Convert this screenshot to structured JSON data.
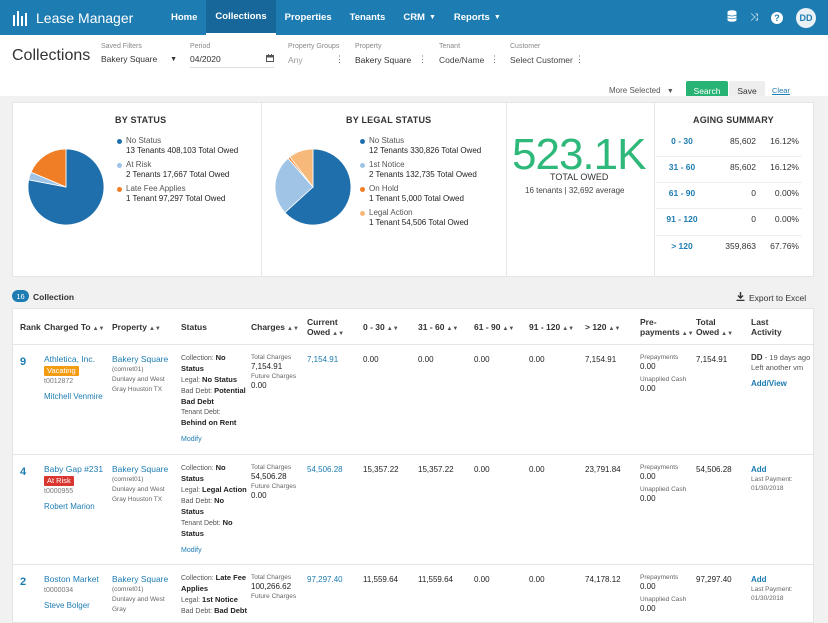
{
  "nav": {
    "app_title": "Lease Manager",
    "items": [
      "Home",
      "Collections",
      "Properties",
      "Tenants",
      "CRM",
      "Reports"
    ],
    "avatar": "DD"
  },
  "filters": {
    "title": "Collections",
    "saved_label": "Saved Filters",
    "saved_value": "Bakery Square",
    "period_label": "Period",
    "period_value": "04/2020",
    "pg_label": "Property Groups",
    "pg_value": "Any",
    "prop_label": "Property",
    "prop_value": "Bakery Square",
    "tenant_label": "Tenant",
    "tenant_placeholder": "Code/Name",
    "cust_label": "Customer",
    "cust_placeholder": "Select Customer",
    "more": "More Selected",
    "search": "Search",
    "save": "Save",
    "clear": "Clear"
  },
  "by_status": {
    "title": "BY STATUS",
    "items": [
      {
        "name": "No Status",
        "val": "13 Tenants 408,103 Total Owed",
        "color": "#1f6fad"
      },
      {
        "name": "At Risk",
        "val": "2 Tenants 17,667 Total Owed",
        "color": "#9fc4e6"
      },
      {
        "name": "Late Fee Applies",
        "val": "1 Tenant 97,297 Total Owed",
        "color": "#f07e26"
      }
    ],
    "values": [
      408103,
      17667,
      97297
    ]
  },
  "by_legal": {
    "title": "BY LEGAL STATUS",
    "items": [
      {
        "name": "No Status",
        "val": "12 Tenants 330,826 Total Owed",
        "color": "#1f6fad"
      },
      {
        "name": "1st Notice",
        "val": "2 Tenants 132,735 Total Owed",
        "color": "#9fc4e6"
      },
      {
        "name": "On Hold",
        "val": "1 Tenant 5,000 Total Owed",
        "color": "#f07e26"
      },
      {
        "name": "Legal Action",
        "val": "1 Tenant 54,506 Total Owed",
        "color": "#f7b97a"
      }
    ],
    "values": [
      330826,
      132735,
      5000,
      54506
    ]
  },
  "total": {
    "big": "523.1K",
    "label": "TOTAL OWED",
    "sub": "16 tenants | 32,692 average"
  },
  "aging": {
    "title": "AGING SUMMARY",
    "rows": [
      {
        "range": "0 - 30",
        "amount": "85,602",
        "pct": "16.12%"
      },
      {
        "range": "31 - 60",
        "amount": "85,602",
        "pct": "16.12%"
      },
      {
        "range": "61 - 90",
        "amount": "0",
        "pct": "0.00%"
      },
      {
        "range": "91 - 120",
        "amount": "0",
        "pct": "0.00%"
      },
      {
        "range": "> 120",
        "amount": "359,863",
        "pct": "67.76%"
      }
    ]
  },
  "table": {
    "count": "16",
    "label": "Collection",
    "export": "Export to Excel",
    "headers": [
      "Rank",
      "Charged To",
      "Property",
      "Status",
      "Charges",
      "Current Owed",
      "0 - 30",
      "31 - 60",
      "61 - 90",
      "91 - 120",
      "> 120",
      "Pre- payments",
      "Total Owed",
      "Last Activity"
    ],
    "rows": [
      {
        "rank": "9",
        "name": "Athletica, Inc.",
        "tag": "Vacating",
        "id": "t0012872",
        "person": "Mitchell Venmire",
        "prop": "Bakery Square",
        "prop_code": "(comret01)",
        "addr": "Dunlavy and West Gray Houston TX",
        "st_coll": "No Status",
        "st_legal": "No Status",
        "st_bad": "Potential Bad Debt",
        "st_tenant": "Behind on Rent",
        "modify": "Modify",
        "tot_charges": "7,154.91",
        "fut_charges": "0.00",
        "current": "7,154.91",
        "a0": "0.00",
        "a31": "0.00",
        "a61": "0.00",
        "a91": "0.00",
        "a120": "7,154.91",
        "prepay": "0.00",
        "unapplied": "0.00",
        "total": "7,154.91",
        "last_user": "DD",
        "last_ago": "- 19 days ago",
        "last_note": "Left another vm",
        "last_link": "Add/View",
        "last_pay": ""
      },
      {
        "rank": "4",
        "name": "Baby Gap #231",
        "tag": "At Risk",
        "id": "t0000955",
        "person": "Robert Marion",
        "prop": "Bakery Square",
        "prop_code": "(comret01)",
        "addr": "Dunlavy and West Gray Houston TX",
        "st_coll": "No Status",
        "st_legal": "Legal Action",
        "st_bad": "No Status",
        "st_tenant": "No Status",
        "modify": "Modify",
        "tot_charges": "54,506.28",
        "fut_charges": "0.00",
        "current": "54,506.28",
        "a0": "15,357.22",
        "a31": "15,357.22",
        "a61": "0.00",
        "a91": "0.00",
        "a120": "23,791.84",
        "prepay": "0.00",
        "unapplied": "0.00",
        "total": "54,506.28",
        "last_user": "",
        "last_ago": "",
        "last_note": "",
        "last_link": "Add",
        "last_pay": "Last Payment: 01/30/2018"
      },
      {
        "rank": "2",
        "name": "Boston Market",
        "tag": "",
        "id": "t0000034",
        "person": "Steve Bolger",
        "prop": "Bakery Square",
        "prop_code": "(comret01)",
        "addr": "Dunlavy and West Gray",
        "st_coll": "Late Fee Applies",
        "st_legal": "1st Notice",
        "st_bad": "Bad Debt",
        "st_tenant": "",
        "modify": "",
        "tot_charges": "100,266.62",
        "fut_charges": "",
        "current": "97,297.40",
        "a0": "11,559.64",
        "a31": "11,559.64",
        "a61": "0.00",
        "a91": "0.00",
        "a120": "74,178.12",
        "prepay": "0.00",
        "unapplied": "0.00",
        "total": "97,297.40",
        "last_user": "",
        "last_ago": "",
        "last_note": "",
        "last_link": "Add",
        "last_pay": "Last Payment: 01/30/2018"
      }
    ]
  }
}
